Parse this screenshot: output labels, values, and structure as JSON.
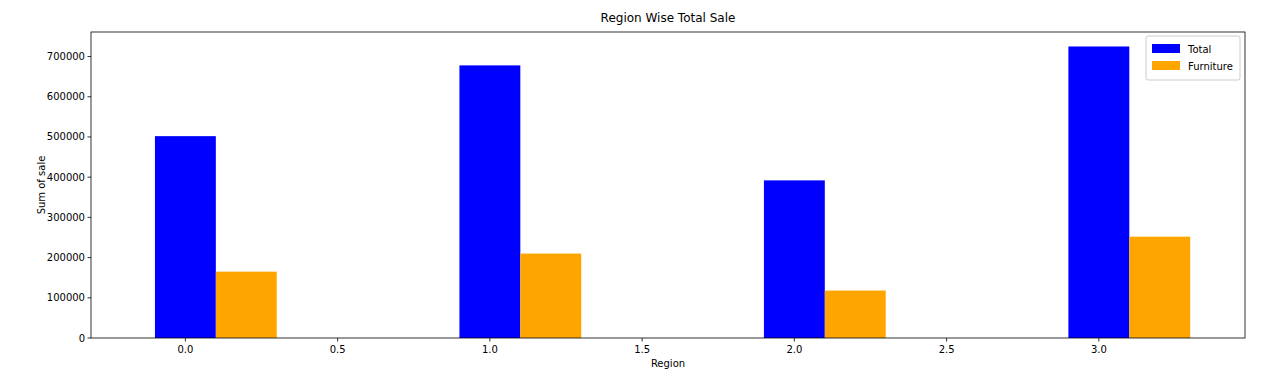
{
  "chart_data": {
    "type": "bar",
    "title": "Region Wise Total Sale",
    "x_label": "Region",
    "y_label": "Sum of sale",
    "series": [
      {
        "name": "Total",
        "color": "blue",
        "x": [
          0,
          1,
          2,
          3
        ],
        "values": [
          502000,
          678000,
          392000,
          725000
        ]
      },
      {
        "name": "Furniture",
        "color": "orange",
        "x": [
          0.2,
          1.2,
          2.2,
          3.2
        ],
        "values": [
          165000,
          210000,
          118000,
          252000
        ]
      }
    ],
    "xlim": [
      -0.31,
      3.48
    ],
    "xticks": [
      {
        "value": 0,
        "label": "0.0"
      },
      {
        "value": 0.5,
        "label": "0.5"
      },
      {
        "value": 1,
        "label": "1.0"
      },
      {
        "value": 1.5,
        "label": "1.5"
      },
      {
        "value": 2,
        "label": "2.0"
      },
      {
        "value": 2.5,
        "label": "2.5"
      },
      {
        "value": 3,
        "label": "3.0"
      }
    ],
    "ylim": [
      0,
      761000
    ],
    "yticks": [
      0,
      100000,
      200000,
      300000,
      400000,
      500000,
      600000,
      700000
    ],
    "legend": "upper-right",
    "grid": false
  }
}
